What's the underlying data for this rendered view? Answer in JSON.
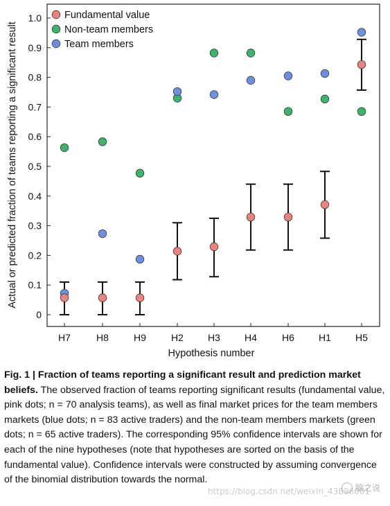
{
  "chart_data": {
    "type": "scatter",
    "ylabel": "Actual or predicted fraction of teams reporting a significant result",
    "xlabel": "Hypothesis number",
    "categories": [
      "H7",
      "H8",
      "H9",
      "H2",
      "H3",
      "H4",
      "H6",
      "H1",
      "H5"
    ],
    "ylim": [
      0,
      1.0
    ],
    "yticks": [
      "0",
      "0.1",
      "0.2",
      "0.3",
      "0.4",
      "0.5",
      "0.6",
      "0.7",
      "0.8",
      "0.9",
      "1.0"
    ],
    "legend_position": "top-left",
    "grid": false,
    "series": [
      {
        "name": "Fundamental value",
        "color": "#e8837f",
        "values": [
          0.057,
          0.057,
          0.057,
          0.214,
          0.229,
          0.329,
          0.329,
          0.371,
          0.843
        ],
        "ci_low": [
          0.0,
          0.0,
          0.0,
          0.118,
          0.128,
          0.218,
          0.218,
          0.258,
          0.757
        ],
        "ci_high": [
          0.11,
          0.11,
          0.11,
          0.31,
          0.325,
          0.44,
          0.44,
          0.483,
          0.928
        ]
      },
      {
        "name": "Non-team members",
        "color": "#3db36b",
        "values": [
          0.563,
          0.583,
          0.477,
          0.73,
          0.882,
          0.882,
          0.685,
          0.727,
          0.685
        ]
      },
      {
        "name": "Team members",
        "color": "#6d8fe0",
        "values": [
          0.072,
          0.273,
          0.187,
          0.752,
          0.742,
          0.79,
          0.805,
          0.813,
          0.952
        ]
      }
    ]
  },
  "caption": {
    "label": "Fig. 1 | ",
    "title": "Fraction of teams reporting a significant result and prediction market beliefs.",
    "body": " The observed fraction of teams reporting significant results (fundamental value, pink dots; n = 70 analysis teams), as well as final market prices for the team members markets (blue dots; n = 83 active traders) and the non-team members markets (green dots; n = 65 active traders). The corresponding 95% confidence intervals are shown for each of the nine hypotheses (note that hypotheses are sorted on the basis of the fundamental value). Confidence intervals were constructed by assuming convergence of the binomial distribution towards the normal."
  },
  "watermark": {
    "text": "https://blog.csdn.net/weixin_43896001",
    "logo_text": "脑之说"
  }
}
